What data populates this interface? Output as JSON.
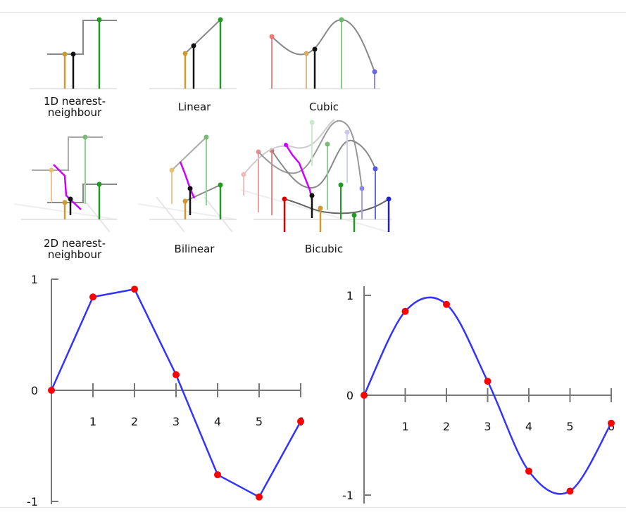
{
  "diagrams": [
    {
      "key": "nn1d",
      "caption": "1D nearest-\nneighbour"
    },
    {
      "key": "linear",
      "caption": "Linear"
    },
    {
      "key": "cubic",
      "caption": "Cubic"
    },
    {
      "key": "nn2d",
      "caption": "2D nearest-\nneighbour"
    },
    {
      "key": "bilinear",
      "caption": "Bilinear"
    },
    {
      "key": "bicubic",
      "caption": "Bicubic"
    }
  ],
  "colors": {
    "sample_red": "#dd0000",
    "sample_gold": "#cc9933",
    "sample_green": "#229922",
    "sample_blue": "#2222cc",
    "interp_purple": "#cc00ff",
    "curve_gray": "#888888",
    "plot_line": "#3333ff",
    "plot_point": "#ff0000",
    "axis": "#777777"
  },
  "chart_data": [
    {
      "type": "line",
      "title": "",
      "interpolation": "linear",
      "x": [
        0,
        1,
        2,
        3,
        4,
        5,
        6
      ],
      "y": [
        0.0,
        0.84,
        0.91,
        0.14,
        -0.76,
        -0.96,
        -0.28
      ],
      "xticks": [
        "1",
        "2",
        "3",
        "4",
        "5",
        "6"
      ],
      "yticks": [
        "1",
        "0",
        "-1"
      ],
      "xlim": [
        0,
        6
      ],
      "ylim": [
        -1,
        1
      ]
    },
    {
      "type": "line",
      "title": "",
      "interpolation": "smooth",
      "x": [
        0,
        1,
        2,
        3,
        4,
        5,
        6
      ],
      "y": [
        0.0,
        0.84,
        0.91,
        0.14,
        -0.76,
        -0.96,
        -0.28
      ],
      "xticks": [
        "1",
        "2",
        "3",
        "4",
        "5",
        "6"
      ],
      "yticks": [
        "1",
        "0",
        "-1"
      ],
      "xlim": [
        0,
        6
      ],
      "ylim": [
        -1,
        1
      ]
    }
  ]
}
